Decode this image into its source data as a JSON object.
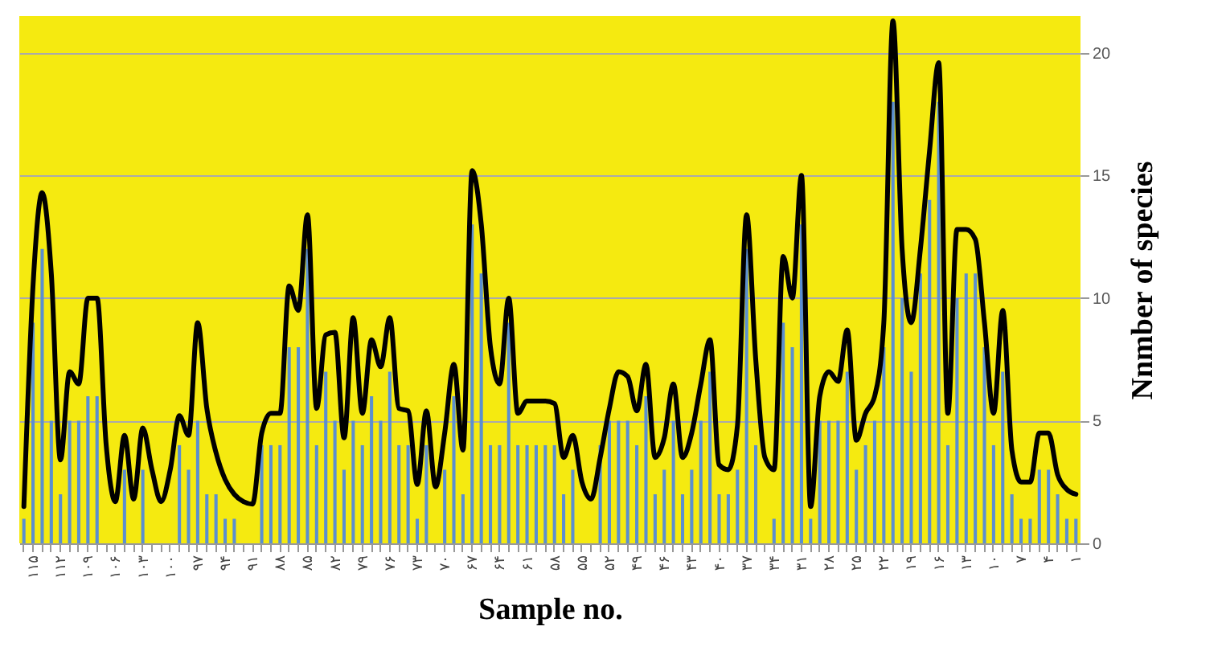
{
  "chart_data": {
    "type": "bar",
    "xlabel": "Sample no.",
    "ylabel": "Nnmber of species",
    "categories": [
      null,
      "۱۱۵",
      null,
      null,
      "۱۱۲",
      null,
      null,
      "۱۰۹",
      null,
      null,
      "۱۰۶",
      null,
      null,
      "۱۰۳",
      null,
      null,
      "۱۰۰",
      null,
      null,
      "۹۷",
      null,
      null,
      "۹۴",
      null,
      null,
      "۹۱",
      null,
      null,
      "۸۸",
      null,
      null,
      "۸۵",
      null,
      null,
      "۸۲",
      null,
      null,
      "۷۹",
      null,
      null,
      "۷۶",
      null,
      null,
      "۷۳",
      null,
      null,
      "۷۰",
      null,
      null,
      "۶۷",
      null,
      null,
      "۶۴",
      null,
      null,
      "۶۱",
      null,
      null,
      "۵۸",
      null,
      null,
      "۵۵",
      null,
      null,
      "۵۲",
      null,
      null,
      "۴۹",
      null,
      null,
      "۴۶",
      null,
      null,
      "۴۳",
      null,
      null,
      "۴۰",
      null,
      null,
      "۳۷",
      null,
      null,
      "۳۴",
      null,
      null,
      "۳۱",
      null,
      null,
      "۲۸",
      null,
      null,
      "۲۵",
      null,
      null,
      "۲۲",
      null,
      null,
      "۱۹",
      null,
      null,
      "۱۶",
      null,
      null,
      "۱۳",
      null,
      null,
      "۱۰",
      null,
      null,
      "۷",
      null,
      null,
      "۴",
      null,
      null,
      "۱"
    ],
    "series": [
      {
        "color": "#5b8fd0",
        "values": [
          1,
          9,
          12,
          5,
          2,
          5,
          5,
          6,
          6,
          0,
          0,
          3,
          0,
          3,
          0,
          0,
          0,
          4,
          3,
          5,
          2,
          2,
          1,
          1,
          0,
          0,
          4,
          4,
          4,
          8,
          8,
          12,
          4,
          7,
          5,
          3,
          5,
          4,
          6,
          5,
          7,
          4,
          4,
          1,
          4,
          0,
          3,
          6,
          2,
          13,
          11,
          4,
          4,
          9,
          4,
          4,
          4,
          4,
          4,
          2,
          3,
          0,
          0,
          4,
          5,
          5,
          5,
          4,
          6,
          2,
          3,
          5,
          2,
          3,
          5,
          7,
          2,
          2,
          3,
          12,
          4,
          0,
          1,
          9,
          8,
          13,
          1,
          5,
          5,
          5,
          7,
          3,
          4,
          5,
          8,
          18,
          10,
          7,
          11,
          14,
          18,
          4,
          10,
          11,
          11,
          8,
          4,
          7,
          2,
          1,
          1,
          3,
          3,
          2,
          1,
          1
        ]
      },
      {
        "type": "line",
        "color": "#000000",
        "values": [
          1.5,
          10.5,
          14.3,
          11,
          3.4,
          7,
          6.5,
          10,
          10,
          4,
          1.7,
          4.4,
          1.8,
          4.7,
          3,
          1.7,
          3,
          5.2,
          4.4,
          9,
          5.5,
          3.7,
          2.6,
          2,
          1.7,
          1.6,
          4.5,
          5.3,
          5.3,
          10.5,
          9.5,
          13.4,
          5.5,
          8.5,
          8.6,
          4.3,
          9.2,
          5.3,
          8.3,
          7.2,
          9.2,
          5.5,
          5.4,
          2.4,
          5.4,
          2.3,
          4.5,
          7.3,
          3.8,
          15.2,
          13,
          8,
          6.5,
          10,
          5.3,
          5.8,
          5.8,
          5.8,
          5.7,
          3.5,
          4.4,
          2.5,
          1.8,
          3.5,
          5.5,
          7,
          6.8,
          5.4,
          7.3,
          3.5,
          4.3,
          6.5,
          3.5,
          4.5,
          6.5,
          8.3,
          3.2,
          3,
          4.8,
          13.4,
          7.5,
          3.5,
          3,
          11.7,
          10,
          15,
          1.5,
          6,
          7,
          6.6,
          8.7,
          4.2,
          5.3,
          6,
          9,
          21.3,
          12,
          9,
          12,
          16,
          19.6,
          5.3,
          12.8,
          12.8,
          12.4,
          9,
          5.3,
          9.5,
          3.8,
          2.5,
          2.5,
          4.5,
          4.5,
          2.8,
          2.2,
          2
        ]
      }
    ],
    "ylim": [
      0,
      21.5
    ],
    "yticks": [
      0,
      5,
      10,
      15,
      20
    ],
    "grid": "y"
  }
}
